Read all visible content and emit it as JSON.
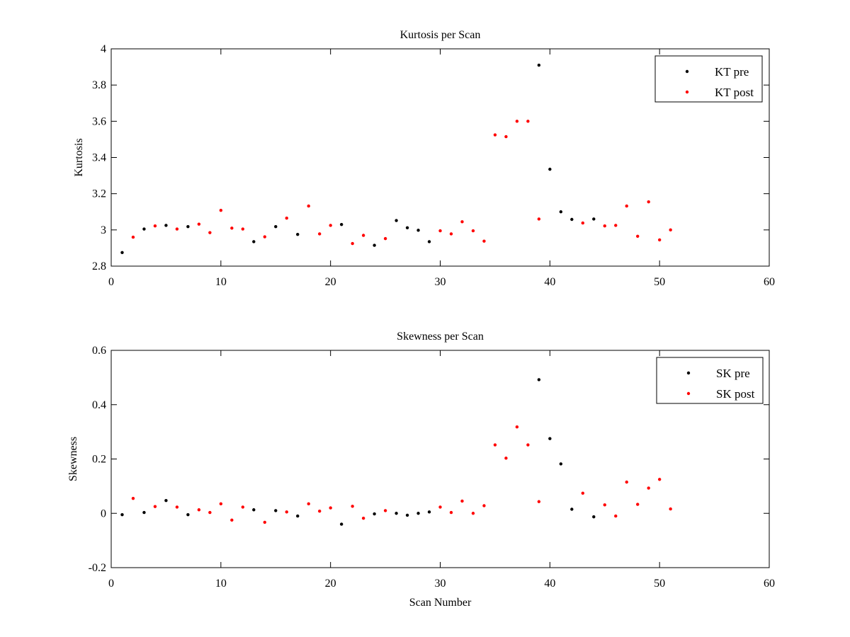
{
  "chart_data": [
    {
      "type": "scatter",
      "title": "Kurtosis per Scan",
      "xlabel": "",
      "ylabel": "Kurtosis",
      "xlim": [
        0,
        60
      ],
      "ylim": [
        2.8,
        4
      ],
      "xticks": [
        0,
        10,
        20,
        30,
        40,
        50,
        60
      ],
      "yticks": [
        2.8,
        3,
        3.2,
        3.4,
        3.6,
        3.8,
        4
      ],
      "ytick_labels": [
        "2.8",
        "3",
        "3.2",
        "3.4",
        "3.6",
        "3.8",
        "4"
      ],
      "grid": false,
      "legend_position": "top-right",
      "series": [
        {
          "name": "KT pre",
          "color": "#000000",
          "points": [
            [
              1,
              2.875
            ],
            [
              3,
              3.005
            ],
            [
              5,
              3.025
            ],
            [
              7,
              3.018
            ],
            [
              13,
              2.935
            ],
            [
              15,
              3.018
            ],
            [
              17,
              2.975
            ],
            [
              21,
              3.03
            ],
            [
              24,
              2.915
            ],
            [
              26,
              3.052
            ],
            [
              27,
              3.012
            ],
            [
              28,
              2.998
            ],
            [
              29,
              2.935
            ],
            [
              39,
              3.91
            ],
            [
              40,
              3.335
            ],
            [
              41,
              3.1
            ],
            [
              42,
              3.058
            ],
            [
              44,
              3.06
            ]
          ]
        },
        {
          "name": "KT post",
          "color": "#ff0000",
          "points": [
            [
              2,
              2.96
            ],
            [
              4,
              3.022
            ],
            [
              6,
              3.005
            ],
            [
              8,
              3.032
            ],
            [
              9,
              2.985
            ],
            [
              10,
              3.108
            ],
            [
              11,
              3.01
            ],
            [
              12,
              3.005
            ],
            [
              14,
              2.962
            ],
            [
              16,
              3.065
            ],
            [
              18,
              3.132
            ],
            [
              19,
              2.978
            ],
            [
              20,
              3.025
            ],
            [
              22,
              2.925
            ],
            [
              23,
              2.97
            ],
            [
              25,
              2.952
            ],
            [
              30,
              2.995
            ],
            [
              31,
              2.978
            ],
            [
              32,
              3.045
            ],
            [
              33,
              2.995
            ],
            [
              34,
              2.938
            ],
            [
              35,
              3.525
            ],
            [
              36,
              3.515
            ],
            [
              37,
              3.6
            ],
            [
              38,
              3.6
            ],
            [
              39,
              3.06
            ],
            [
              43,
              3.038
            ],
            [
              45,
              3.022
            ],
            [
              46,
              3.025
            ],
            [
              47,
              3.132
            ],
            [
              48,
              2.965
            ],
            [
              49,
              3.155
            ],
            [
              50,
              2.945
            ],
            [
              51,
              3.0
            ]
          ]
        }
      ]
    },
    {
      "type": "scatter",
      "title": "Skewness per Scan",
      "xlabel": "Scan Number",
      "ylabel": "Skewness",
      "xlim": [
        0,
        60
      ],
      "ylim": [
        -0.2,
        0.6
      ],
      "xticks": [
        0,
        10,
        20,
        30,
        40,
        50,
        60
      ],
      "yticks": [
        -0.2,
        0,
        0.2,
        0.4,
        0.6
      ],
      "ytick_labels": [
        "-0.2",
        "0",
        "0.2",
        "0.4",
        "0.6"
      ],
      "grid": false,
      "legend_position": "top-right",
      "series": [
        {
          "name": "SK pre",
          "color": "#000000",
          "points": [
            [
              1,
              -0.005
            ],
            [
              3,
              0.003
            ],
            [
              5,
              0.047
            ],
            [
              7,
              -0.005
            ],
            [
              13,
              0.013
            ],
            [
              15,
              0.01
            ],
            [
              17,
              -0.01
            ],
            [
              21,
              -0.04
            ],
            [
              24,
              -0.002
            ],
            [
              26,
              0.0
            ],
            [
              27,
              -0.007
            ],
            [
              28,
              0.0
            ],
            [
              29,
              0.005
            ],
            [
              39,
              0.492
            ],
            [
              40,
              0.275
            ],
            [
              41,
              0.182
            ],
            [
              42,
              0.015
            ],
            [
              44,
              -0.013
            ]
          ]
        },
        {
          "name": "SK post",
          "color": "#ff0000",
          "points": [
            [
              2,
              0.055
            ],
            [
              4,
              0.025
            ],
            [
              6,
              0.023
            ],
            [
              8,
              0.013
            ],
            [
              9,
              0.003
            ],
            [
              10,
              0.035
            ],
            [
              11,
              -0.025
            ],
            [
              12,
              0.023
            ],
            [
              14,
              -0.033
            ],
            [
              16,
              0.005
            ],
            [
              18,
              0.035
            ],
            [
              19,
              0.008
            ],
            [
              20,
              0.02
            ],
            [
              22,
              0.026
            ],
            [
              23,
              -0.018
            ],
            [
              25,
              0.01
            ],
            [
              30,
              0.023
            ],
            [
              31,
              0.003
            ],
            [
              32,
              0.045
            ],
            [
              33,
              0.0
            ],
            [
              34,
              0.028
            ],
            [
              35,
              0.252
            ],
            [
              36,
              0.203
            ],
            [
              37,
              0.318
            ],
            [
              38,
              0.252
            ],
            [
              39,
              0.043
            ],
            [
              43,
              0.074
            ],
            [
              45,
              0.031
            ],
            [
              46,
              -0.01
            ],
            [
              47,
              0.115
            ],
            [
              48,
              0.033
            ],
            [
              49,
              0.093
            ],
            [
              50,
              0.125
            ],
            [
              51,
              0.016
            ]
          ]
        }
      ]
    }
  ]
}
